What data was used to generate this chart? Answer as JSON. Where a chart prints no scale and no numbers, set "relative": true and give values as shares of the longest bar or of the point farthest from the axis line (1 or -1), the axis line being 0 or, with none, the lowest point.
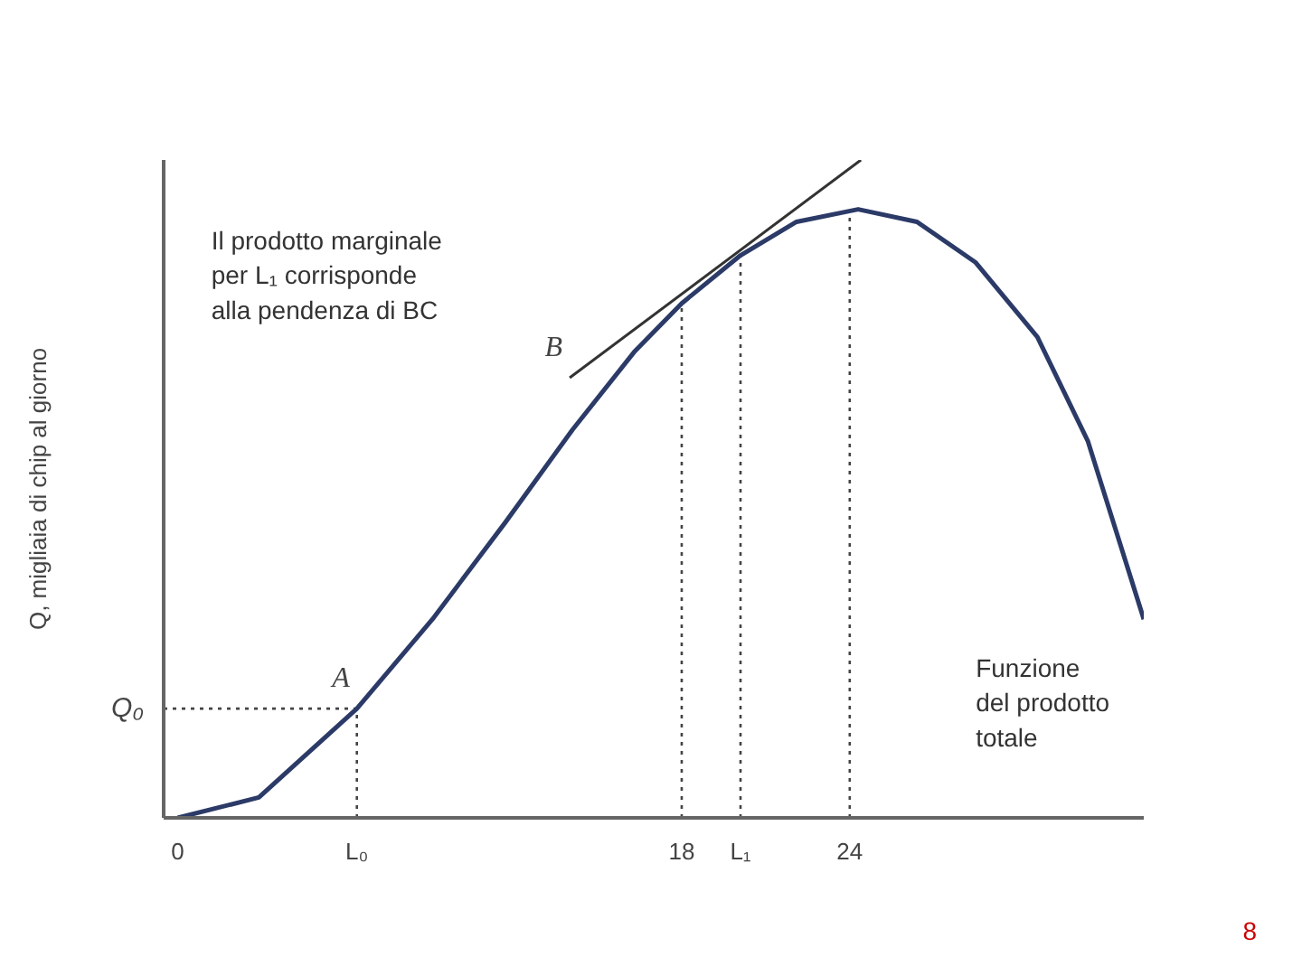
{
  "chart_data": {
    "type": "line",
    "relative": true,
    "ylabel": "Q, migliaia di chip al giorno",
    "xlim": [
      -0.5,
      34.5
    ],
    "xticks": [
      0,
      {
        "value": 6.4,
        "label": "L₀"
      },
      18,
      {
        "value": 20.1,
        "label": "L₁"
      },
      24
    ],
    "series": [
      {
        "color": "#2b3a67",
        "x": [
          0,
          2.9,
          6.4,
          9.1,
          11.7,
          14.1,
          16.3,
          18,
          20.1,
          22.1,
          24.3,
          26.4,
          28.5,
          30.7,
          32.5,
          34.5
        ],
        "values": [
          0,
          0.031,
          0.166,
          0.302,
          0.449,
          0.59,
          0.708,
          0.782,
          0.855,
          0.906,
          0.925,
          0.906,
          0.844,
          0.731,
          0.573,
          0.302
        ]
      },
      {
        "color": "#333333",
        "x": [
          14,
          24.4
        ],
        "values": [
          0.669,
          1.0
        ]
      }
    ],
    "ref_lines": [
      {
        "axis": "y",
        "value": 0.166,
        "label": "Q₀",
        "line_style": "dotted",
        "color": "#444444"
      },
      {
        "axis": "x",
        "value": 6.4,
        "line_style": "dotted",
        "color": "#444444"
      },
      {
        "axis": "x",
        "value": 18,
        "line_style": "dotted",
        "color": "#444444"
      },
      {
        "axis": "x",
        "value": 20.1,
        "line_style": "dotted",
        "color": "#444444"
      },
      {
        "axis": "x",
        "value": 24,
        "line_style": "dotted",
        "color": "#444444"
      }
    ],
    "annotations": [
      "Il prodotto marginale\nper L₁ corrisponde\nalla pendenza di BC",
      "Funzione\ndel prodotto\ntotale",
      "8",
      {
        "text": "A",
        "x": 6.4,
        "y": 0.166
      },
      {
        "text": "B",
        "x": 14,
        "y": 0.669
      }
    ],
    "marker": "none",
    "line_style": "solid",
    "grid": false
  }
}
